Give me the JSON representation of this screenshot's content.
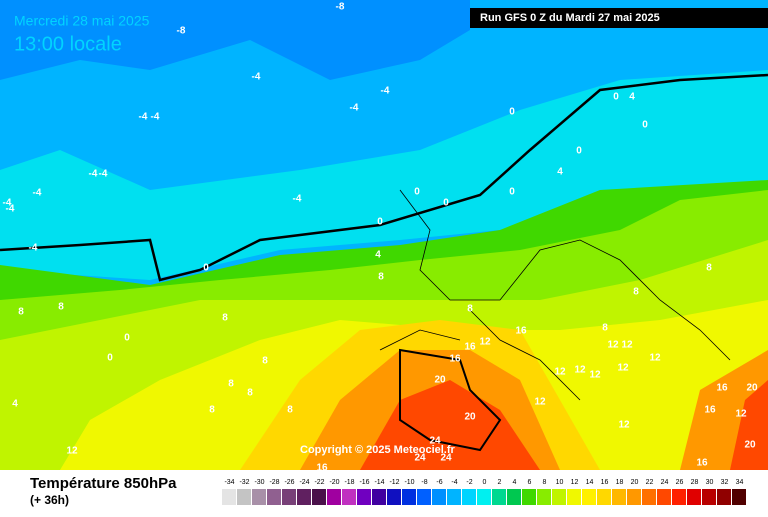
{
  "header": {
    "date": "Mercredi 28 mai 2025",
    "time": "13:00 locale",
    "run": "Run GFS 0 Z du Mardi 27 mai 2025"
  },
  "copyright": "Copyright © 2025 Meteociel.fr",
  "footer": {
    "title": "Température 850hPa",
    "lead": "(+ 36h)"
  },
  "scale": {
    "values": [
      -34,
      -32,
      -30,
      -28,
      -26,
      -24,
      -22,
      -20,
      -18,
      -16,
      -14,
      -12,
      -10,
      -8,
      -6,
      -4,
      -2,
      0,
      2,
      4,
      6,
      8,
      10,
      12,
      14,
      16,
      18,
      20,
      22,
      24,
      26,
      28,
      30,
      32,
      34
    ],
    "colors": [
      "#e4e4e4",
      "#c4c4c4",
      "#a890a8",
      "#906090",
      "#784078",
      "#602060",
      "#4a104a",
      "#a000a0",
      "#c030c0",
      "#7000c0",
      "#4000a0",
      "#1010c0",
      "#0030e0",
      "#0060ff",
      "#0090ff",
      "#00b4ff",
      "#00d4ff",
      "#00f0f0",
      "#00d890",
      "#00c850",
      "#40d800",
      "#88ec00",
      "#c0f400",
      "#f0f800",
      "#fff000",
      "#ffd800",
      "#ffb800",
      "#ff9800",
      "#ff7000",
      "#ff4800",
      "#ff2000",
      "#e00000",
      "#b80000",
      "#900000",
      "#500000"
    ]
  },
  "contour_labels": [
    -8,
    -8,
    -4,
    -4,
    -4,
    -4,
    -4,
    -4,
    -4,
    -4,
    -4,
    -4,
    -4,
    -4,
    0,
    0,
    0,
    0,
    0,
    0,
    0,
    0,
    0,
    0,
    0,
    4,
    4,
    4,
    4,
    8,
    8,
    8,
    8,
    8,
    8,
    8,
    8,
    8,
    8,
    8,
    8,
    8,
    12,
    12,
    12,
    12,
    12,
    12,
    12,
    12,
    12,
    12,
    12,
    12,
    16,
    16,
    16,
    16,
    16,
    16,
    16,
    20,
    20,
    20,
    20,
    24,
    24,
    24
  ]
}
